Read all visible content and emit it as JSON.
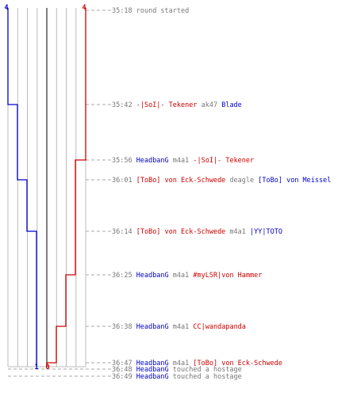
{
  "colors": {
    "blue": "#0000cc",
    "red": "#cc0000",
    "grid": "#bbbbbb",
    "center": "#555555",
    "dash": "#aaaaaa",
    "time": "#777777",
    "text": "#777777"
  },
  "chart_data": {
    "type": "line",
    "title": "",
    "xlabel": "",
    "ylabel": "",
    "x_ticks": [
      "4",
      "1",
      "0",
      "4"
    ],
    "series": [
      {
        "color": "#0000cc",
        "steps": [
          {
            "t": "35:18",
            "v": 4
          },
          {
            "t": "35:42",
            "v": 3
          },
          {
            "t": "36:01",
            "v": 2
          },
          {
            "t": "36:14",
            "v": 1
          }
        ]
      },
      {
        "color": "#cc0000",
        "steps": [
          {
            "t": "35:18",
            "v": 4
          },
          {
            "t": "35:56",
            "v": 3
          },
          {
            "t": "36:25",
            "v": 2
          },
          {
            "t": "36:38",
            "v": 1
          },
          {
            "t": "36:47",
            "v": 0
          }
        ]
      }
    ],
    "events": [
      {
        "time": "35:18",
        "parts": [
          {
            "text": "round started",
            "color": "text"
          }
        ]
      },
      {
        "time": "35:42",
        "parts": [
          {
            "text": "-|SoI|- Tekener",
            "color": "red"
          },
          {
            "text": " ak47 ",
            "color": "text"
          },
          {
            "text": "Blade",
            "color": "blue"
          }
        ]
      },
      {
        "time": "35:56",
        "parts": [
          {
            "text": "HeadbanG",
            "color": "blue"
          },
          {
            "text": " m4a1 ",
            "color": "text"
          },
          {
            "text": "-|SoI|- Tekener",
            "color": "red"
          }
        ]
      },
      {
        "time": "36:01",
        "parts": [
          {
            "text": "[ToBo] von Eck-Schwede",
            "color": "red"
          },
          {
            "text": " deagle ",
            "color": "text"
          },
          {
            "text": "[ToBo] von Meissel",
            "color": "blue"
          }
        ]
      },
      {
        "time": "36:14",
        "parts": [
          {
            "text": "[ToBo] von Eck-Schwede",
            "color": "red"
          },
          {
            "text": " m4a1 ",
            "color": "text"
          },
          {
            "text": "|YY|TOTO",
            "color": "blue"
          }
        ]
      },
      {
        "time": "36:25",
        "parts": [
          {
            "text": "HeadbanG",
            "color": "blue"
          },
          {
            "text": " m4a1 ",
            "color": "text"
          },
          {
            "text": "#myLSR|von Hammer",
            "color": "red"
          }
        ]
      },
      {
        "time": "36:38",
        "parts": [
          {
            "text": "HeadbanG",
            "color": "blue"
          },
          {
            "text": " m4a1 ",
            "color": "text"
          },
          {
            "text": "CC|wandapanda",
            "color": "red"
          }
        ]
      },
      {
        "time": "36:47",
        "parts": [
          {
            "text": "HeadbanG",
            "color": "blue"
          },
          {
            "text": " m4a1 ",
            "color": "text"
          },
          {
            "text": "[ToBo] von Eck-Schwede",
            "color": "red"
          }
        ]
      },
      {
        "time": "36:48",
        "parts": [
          {
            "text": "HeadbanG",
            "color": "blue"
          },
          {
            "text": " touched a hostage",
            "color": "text"
          }
        ]
      },
      {
        "time": "36:49",
        "parts": [
          {
            "text": "HeadbanG",
            "color": "blue"
          },
          {
            "text": " touched a hostage",
            "color": "text"
          }
        ]
      }
    ]
  }
}
